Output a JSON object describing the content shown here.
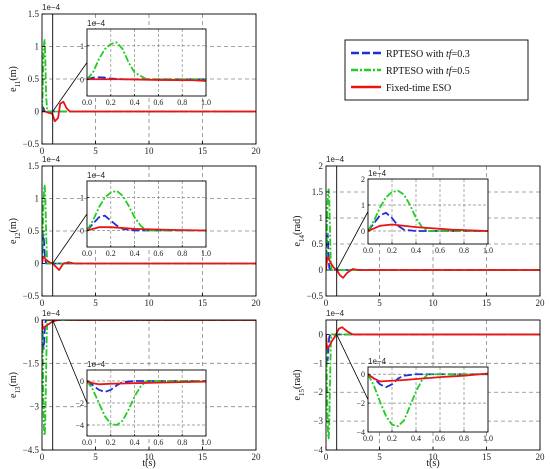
{
  "figure": {
    "xlabel": "t(s)",
    "legend": {
      "entries": [
        {
          "pre": "RPTESO with ",
          "it": "tf",
          "post": "=0.3"
        },
        {
          "pre": "RPTESO with ",
          "it": "tf",
          "post": "=0.5"
        },
        {
          "pre": "Fixed-time ESO",
          "it": "",
          "post": ""
        }
      ]
    }
  },
  "chart_data": [
    {
      "type": "line",
      "id": "e11",
      "ylabel": {
        "base": "e",
        "sub": "11",
        "unit": "(m)"
      },
      "multiplier": "1e−4",
      "xlim": [
        0,
        20
      ],
      "ylim": [
        -0.5,
        1.5
      ],
      "xticks": [
        0,
        5,
        10,
        15,
        20
      ],
      "yticks": [
        -0.5,
        0,
        0.5,
        1,
        1.5
      ],
      "inset": {
        "multiplier": "1e−4",
        "xlim": [
          0,
          1
        ],
        "ylim": [
          -0.5,
          1.5
        ],
        "xticks": [
          0,
          0.2,
          0.4,
          0.6,
          0.8,
          1.0
        ],
        "yticks": [
          0,
          1
        ]
      },
      "series": [
        {
          "name": "RPTESO with tf=0.3",
          "color": "#1f2fd6",
          "dash": "8,3",
          "x": [
            0,
            0.05,
            0.1,
            0.15,
            0.2,
            0.3,
            0.4,
            0.6,
            1,
            20
          ],
          "y": [
            0,
            0.05,
            0.06,
            0.05,
            0.02,
            0,
            0,
            0,
            0,
            0
          ]
        },
        {
          "name": "RPTESO with tf=0.5",
          "color": "#22cc22",
          "dash": "7,2,2,2",
          "x": [
            0,
            0.05,
            0.1,
            0.15,
            0.2,
            0.25,
            0.3,
            0.35,
            0.4,
            0.5,
            0.6,
            1,
            20
          ],
          "y": [
            0,
            0.2,
            0.6,
            0.9,
            1.05,
            1.1,
            0.9,
            0.5,
            0.2,
            0,
            0,
            0,
            0
          ]
        },
        {
          "name": "Fixed-time ESO",
          "color": "#e81515",
          "dash": "",
          "x": [
            0,
            0.1,
            0.3,
            0.6,
            0.9,
            1.0,
            1.2,
            1.5,
            1.7,
            2.0,
            2.3,
            2.6,
            3,
            20
          ],
          "y": [
            0,
            0,
            0,
            -0.02,
            -0.03,
            -0.05,
            -0.15,
            -0.1,
            0.12,
            0.15,
            0.05,
            0,
            0,
            0
          ]
        }
      ]
    },
    {
      "type": "line",
      "id": "e12",
      "ylabel": {
        "base": "e",
        "sub": "12",
        "unit": "(m)"
      },
      "multiplier": "1e−4",
      "xlim": [
        0,
        20
      ],
      "ylim": [
        -0.5,
        1.5
      ],
      "xticks": [
        0,
        5,
        10,
        15,
        20
      ],
      "yticks": [
        -0.5,
        0,
        0.5,
        1,
        1.5
      ],
      "inset": {
        "multiplier": "1e−4",
        "xlim": [
          0,
          1
        ],
        "ylim": [
          -0.5,
          1.5
        ],
        "xticks": [
          0,
          0.2,
          0.4,
          0.6,
          0.8,
          1.0
        ],
        "yticks": [
          0,
          1
        ]
      },
      "series": [
        {
          "name": "RPTESO with tf=0.3",
          "color": "#1f2fd6",
          "dash": "8,3",
          "x": [
            0,
            0.05,
            0.1,
            0.15,
            0.2,
            0.25,
            0.3,
            0.4,
            1,
            20
          ],
          "y": [
            0,
            0.2,
            0.4,
            0.45,
            0.3,
            0.15,
            0.05,
            0,
            0,
            0
          ]
        },
        {
          "name": "RPTESO with tf=0.5",
          "color": "#22cc22",
          "dash": "7,2,2,2",
          "x": [
            0,
            0.05,
            0.1,
            0.15,
            0.2,
            0.25,
            0.3,
            0.35,
            0.4,
            0.45,
            0.5,
            1,
            20
          ],
          "y": [
            0,
            0.3,
            0.7,
            1.0,
            1.15,
            1.2,
            1.05,
            0.75,
            0.4,
            0.15,
            0,
            0,
            0
          ]
        },
        {
          "name": "Fixed-time ESO",
          "color": "#e81515",
          "dash": "",
          "x": [
            0,
            0.05,
            0.1,
            0.2,
            0.4,
            0.7,
            1.0,
            1.3,
            1.6,
            2.0,
            2.5,
            3,
            20
          ],
          "y": [
            0,
            0.05,
            0.1,
            0.1,
            0.05,
            0.02,
            0,
            -0.05,
            -0.1,
            0,
            0.02,
            0,
            0
          ]
        }
      ]
    },
    {
      "type": "line",
      "id": "e13",
      "ylabel": {
        "base": "e",
        "sub": "13",
        "unit": "(m)"
      },
      "multiplier": "1e−4",
      "xlim": [
        0,
        20
      ],
      "ylim": [
        -4.5,
        0
      ],
      "xticks": [
        0,
        5,
        10,
        15,
        20
      ],
      "yticks": [
        -4.5,
        -3,
        -1.5,
        0
      ],
      "inset": {
        "multiplier": "1e−4",
        "xlim": [
          0,
          1
        ],
        "ylim": [
          -5,
          1
        ],
        "xticks": [
          0,
          0.2,
          0.4,
          0.6,
          0.8,
          1.0
        ],
        "yticks": [
          0,
          -2,
          -4
        ]
      },
      "series": [
        {
          "name": "RPTESO with tf=0.3",
          "color": "#1f2fd6",
          "dash": "8,3",
          "x": [
            0,
            0.05,
            0.1,
            0.15,
            0.2,
            0.25,
            0.3,
            0.4,
            1,
            20
          ],
          "y": [
            0,
            -0.4,
            -0.8,
            -1.0,
            -0.8,
            -0.4,
            -0.1,
            0,
            0,
            0
          ]
        },
        {
          "name": "RPTESO with tf=0.5",
          "color": "#22cc22",
          "dash": "7,2,2,2",
          "x": [
            0,
            0.05,
            0.1,
            0.15,
            0.2,
            0.25,
            0.3,
            0.35,
            0.4,
            0.45,
            0.5,
            1,
            20
          ],
          "y": [
            0,
            -0.8,
            -2.0,
            -3.2,
            -3.9,
            -4.0,
            -3.6,
            -2.6,
            -1.4,
            -0.5,
            0,
            0,
            0
          ]
        },
        {
          "name": "Fixed-time ESO",
          "color": "#e81515",
          "dash": "",
          "x": [
            0,
            0.05,
            0.1,
            0.2,
            0.4,
            0.6,
            0.8,
            1.0,
            1.5,
            2.0,
            3,
            20
          ],
          "y": [
            0,
            -0.2,
            -0.3,
            -0.25,
            -0.2,
            -0.15,
            -0.1,
            -0.05,
            0,
            0.03,
            0,
            0
          ]
        }
      ]
    },
    {
      "type": "line",
      "id": "e14",
      "ylabel": {
        "base": "e",
        "sub": "14",
        "unit": "(rad)"
      },
      "multiplier": "1e−4",
      "xlim": [
        0,
        20
      ],
      "ylim": [
        -0.5,
        2
      ],
      "xticks": [
        0,
        5,
        10,
        15,
        20
      ],
      "yticks": [
        -0.5,
        0,
        0.5,
        1,
        1.5,
        2
      ],
      "inset": {
        "multiplier": "1e−4",
        "xlim": [
          0,
          1
        ],
        "ylim": [
          -0.5,
          2
        ],
        "xticks": [
          0,
          0.2,
          0.4,
          0.6,
          0.8,
          1.0
        ],
        "yticks": [
          0,
          1,
          2
        ]
      },
      "series": [
        {
          "name": "RPTESO with tf=0.3",
          "color": "#1f2fd6",
          "dash": "8,3",
          "x": [
            0,
            0.05,
            0.1,
            0.15,
            0.2,
            0.25,
            0.3,
            0.4,
            1,
            20
          ],
          "y": [
            0,
            0.3,
            0.6,
            0.7,
            0.5,
            0.2,
            0.05,
            0,
            0,
            0
          ]
        },
        {
          "name": "RPTESO with tf=0.5",
          "color": "#22cc22",
          "dash": "7,2,2,2",
          "x": [
            0,
            0.05,
            0.1,
            0.15,
            0.2,
            0.25,
            0.3,
            0.35,
            0.4,
            0.45,
            0.5,
            1,
            20
          ],
          "y": [
            0,
            0.4,
            0.9,
            1.3,
            1.5,
            1.55,
            1.4,
            1.0,
            0.5,
            0.15,
            0,
            0,
            0
          ]
        },
        {
          "name": "Fixed-time ESO",
          "color": "#e81515",
          "dash": "",
          "x": [
            0,
            0.05,
            0.1,
            0.2,
            0.4,
            0.7,
            1.0,
            1.3,
            1.6,
            2.0,
            2.5,
            3,
            20
          ],
          "y": [
            0,
            0.1,
            0.2,
            0.25,
            0.15,
            0.05,
            0,
            -0.1,
            -0.15,
            -0.05,
            0.02,
            0,
            0
          ]
        }
      ]
    },
    {
      "type": "line",
      "id": "e15",
      "ylabel": {
        "base": "e",
        "sub": "15",
        "unit": "(rad)"
      },
      "multiplier": "1e−4",
      "xlim": [
        0,
        20
      ],
      "ylim": [
        -4,
        0.5
      ],
      "xticks": [
        0,
        5,
        10,
        15,
        20
      ],
      "yticks": [
        -4,
        -3,
        -2,
        -1,
        0
      ],
      "inset": {
        "multiplier": "1e−4",
        "xlim": [
          0,
          1
        ],
        "ylim": [
          -4,
          0.5
        ],
        "xticks": [
          0,
          0.2,
          0.4,
          0.6,
          0.8,
          1.0
        ],
        "yticks": [
          0,
          -2,
          -4
        ]
      },
      "series": [
        {
          "name": "RPTESO with tf=0.3",
          "color": "#1f2fd6",
          "dash": "8,3",
          "x": [
            0,
            0.05,
            0.1,
            0.15,
            0.2,
            0.25,
            0.3,
            0.4,
            1,
            20
          ],
          "y": [
            0,
            -0.3,
            -0.7,
            -0.9,
            -0.7,
            -0.3,
            -0.1,
            0,
            0,
            0
          ]
        },
        {
          "name": "RPTESO with tf=0.5",
          "color": "#22cc22",
          "dash": "7,2,2,2",
          "x": [
            0,
            0.05,
            0.1,
            0.15,
            0.2,
            0.25,
            0.3,
            0.35,
            0.4,
            0.45,
            0.5,
            1,
            20
          ],
          "y": [
            0,
            -0.8,
            -1.9,
            -2.9,
            -3.5,
            -3.6,
            -3.2,
            -2.2,
            -1.2,
            -0.4,
            0,
            0,
            0
          ]
        },
        {
          "name": "Fixed-time ESO",
          "color": "#e81515",
          "dash": "",
          "x": [
            0,
            0.05,
            0.1,
            0.3,
            0.6,
            0.8,
            1.0,
            1.2,
            1.5,
            2.0,
            2.5,
            20
          ],
          "y": [
            0,
            -0.3,
            -0.5,
            -0.4,
            -0.2,
            -0.1,
            0.05,
            0.2,
            0.25,
            0.1,
            0,
            0
          ]
        }
      ]
    }
  ]
}
